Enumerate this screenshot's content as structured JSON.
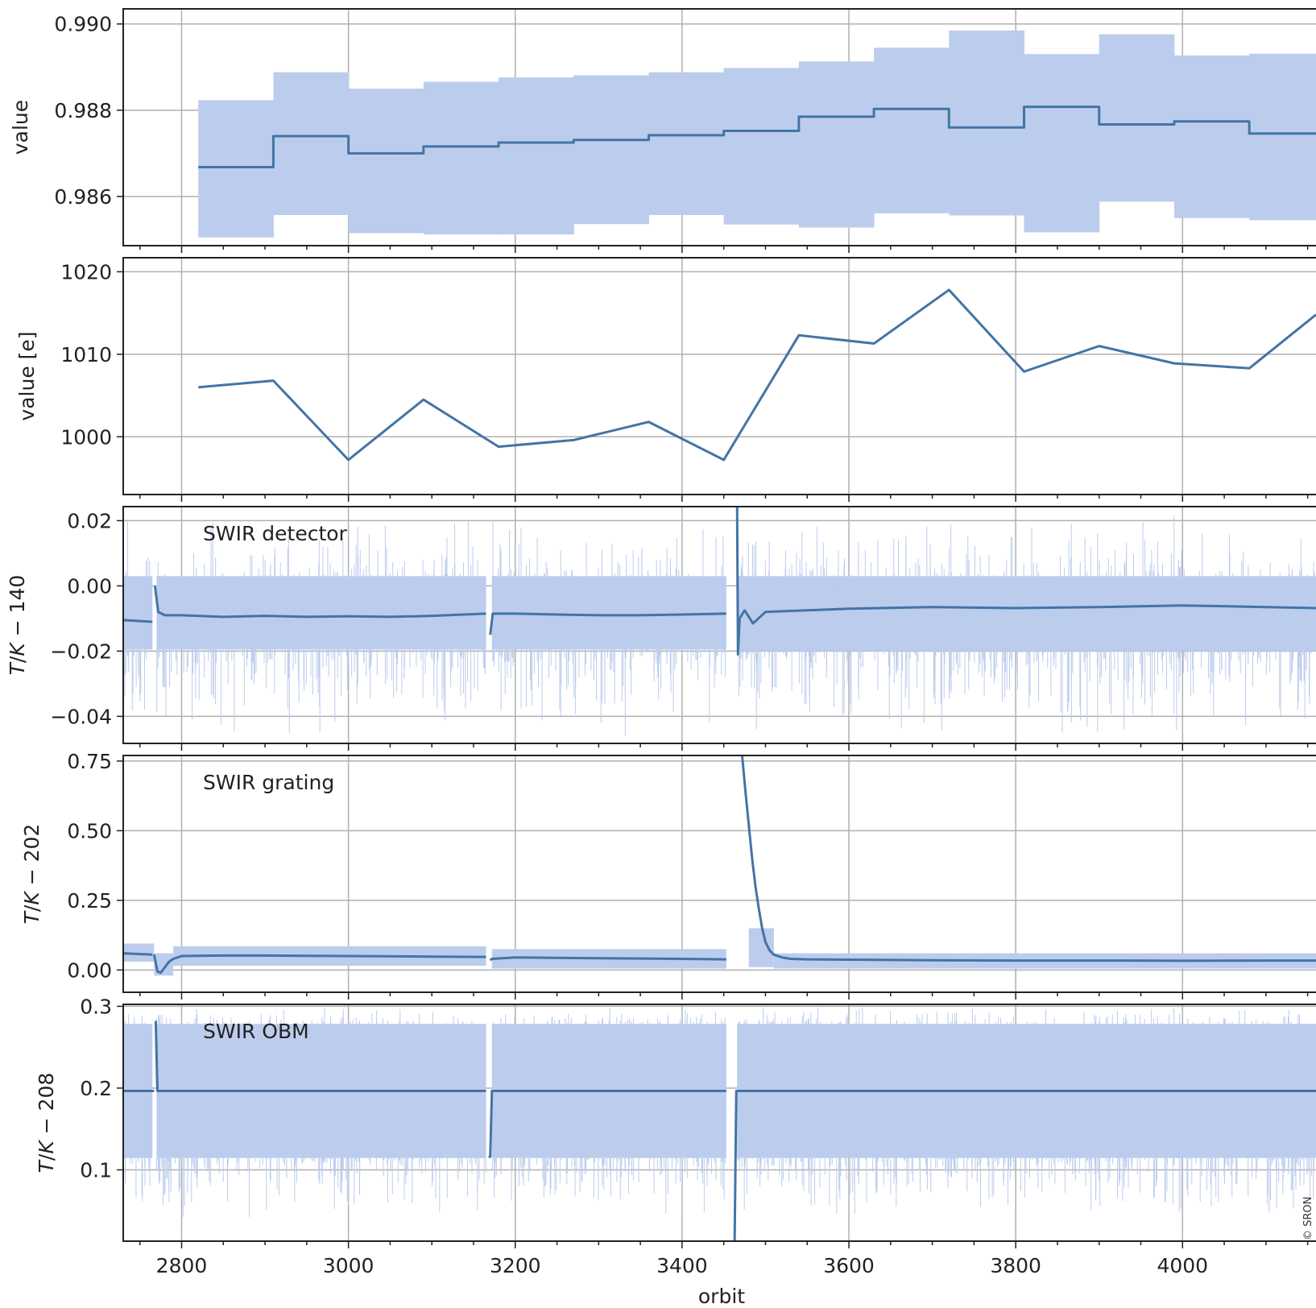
{
  "copyright": "© SRON",
  "colors": {
    "line": "#4374a6",
    "band": "#bccced",
    "grid": "#b0b0b0",
    "axis": "#222222"
  },
  "chart_data": [
    {
      "id": "p1",
      "type": "step",
      "ylabel": "value",
      "xlim": [
        2730,
        4160
      ],
      "ylim": [
        0.98486,
        0.99035
      ],
      "yticks": [
        0.986,
        0.988,
        0.99
      ],
      "ytick_labels": [
        "0.986",
        "0.988",
        "0.990"
      ],
      "x": [
        2820,
        2910,
        3000,
        3090,
        3180,
        3270,
        3360,
        3450,
        3540,
        3630,
        3720,
        3810,
        3900,
        3990,
        4080
      ],
      "y": [
        0.98668,
        0.9874,
        0.987,
        0.98716,
        0.98725,
        0.98731,
        0.98742,
        0.98752,
        0.98785,
        0.98803,
        0.9876,
        0.98808,
        0.98767,
        0.98774,
        0.98746
      ],
      "band_low": [
        0.98505,
        0.98557,
        0.98515,
        0.98512,
        0.98512,
        0.98536,
        0.98557,
        0.98535,
        0.98528,
        0.98561,
        0.98556,
        0.98517,
        0.98588,
        0.9855,
        0.98545
      ],
      "band_high": [
        0.98823,
        0.98888,
        0.9885,
        0.98866,
        0.98876,
        0.98881,
        0.98888,
        0.98898,
        0.98913,
        0.98945,
        0.98985,
        0.9893,
        0.98976,
        0.98927,
        0.98931
      ]
    },
    {
      "id": "p2",
      "type": "line",
      "ylabel": "value [e]",
      "xlim": [
        2730,
        4160
      ],
      "ylim": [
        993,
        1021.7
      ],
      "yticks": [
        1000,
        1010,
        1020
      ],
      "ytick_labels": [
        "1000",
        "1010",
        "1020"
      ],
      "x": [
        2820,
        2910,
        3000,
        3090,
        3180,
        3270,
        3360,
        3450,
        3540,
        3630,
        3720,
        3810,
        3900,
        3990,
        4080,
        4160
      ],
      "y": [
        1006.0,
        1006.8,
        997.2,
        1004.5,
        998.8,
        999.6,
        1001.8,
        997.2,
        1012.3,
        1011.3,
        1017.8,
        1007.9,
        1011.0,
        1008.9,
        1008.3,
        1014.8
      ]
    },
    {
      "id": "p3",
      "type": "line_band",
      "ylabel": "T/K − 140",
      "annotation": "SWIR detector",
      "xlim": [
        2730,
        4160
      ],
      "ylim": [
        -0.0483,
        0.0243
      ],
      "yticks": [
        -0.04,
        -0.02,
        0.0,
        0.02
      ],
      "ytick_labels": [
        "−0.04",
        "−0.02",
        "0.00",
        "0.02"
      ],
      "band_segments": [
        {
          "x": [
            2730,
            2765
          ],
          "low": -0.0195,
          "high": 0.003
        },
        {
          "x": [
            2770,
            3165
          ],
          "low": -0.0195,
          "high": 0.003
        },
        {
          "x": [
            3172,
            3453
          ],
          "low": -0.0195,
          "high": 0.003
        },
        {
          "x": [
            3466,
            3585
          ],
          "low": -0.02,
          "high": 0.003
        },
        {
          "x": [
            3585,
            4160
          ],
          "low": -0.02,
          "high": 0.003
        }
      ],
      "series_segments": [
        {
          "x": [
            2730,
            2765
          ],
          "y": [
            -0.0105,
            -0.011
          ]
        },
        {
          "x": [
            2768,
            2772,
            2780,
            2800,
            2850,
            2900,
            2950,
            3000,
            3050,
            3100,
            3165
          ],
          "y": [
            0.0,
            -0.008,
            -0.009,
            -0.009,
            -0.0095,
            -0.0092,
            -0.0095,
            -0.0093,
            -0.0095,
            -0.0092,
            -0.0085
          ]
        },
        {
          "x": [
            3170,
            3173,
            3200,
            3250,
            3300,
            3350,
            3400,
            3453
          ],
          "y": [
            -0.015,
            -0.0085,
            -0.0085,
            -0.0088,
            -0.009,
            -0.009,
            -0.0088,
            -0.0085
          ]
        },
        {
          "x": [
            3466,
            3467,
            3469,
            3475,
            3485,
            3500,
            3550,
            3600,
            3700,
            3800,
            3900,
            4000,
            4100,
            4160
          ],
          "y": [
            0.0243,
            -0.021,
            -0.01,
            -0.0075,
            -0.0115,
            -0.008,
            -0.0075,
            -0.007,
            -0.0065,
            -0.0068,
            -0.0065,
            -0.006,
            -0.0065,
            -0.0068
          ]
        }
      ],
      "spike_range": [
        -0.047,
        0.022
      ]
    },
    {
      "id": "p4",
      "type": "line_band",
      "ylabel": "T/K − 202",
      "annotation": "SWIR grating",
      "xlim": [
        2730,
        4160
      ],
      "ylim": [
        -0.08,
        0.77
      ],
      "yticks": [
        0.0,
        0.25,
        0.5,
        0.75
      ],
      "ytick_labels": [
        "0.00",
        "0.25",
        "0.50",
        "0.75"
      ],
      "band_segments": [
        {
          "x": [
            2730,
            2767
          ],
          "low": 0.03,
          "high": 0.095
        },
        {
          "x": [
            2767,
            2790
          ],
          "low": -0.02,
          "high": 0.06
        },
        {
          "x": [
            2790,
            3165
          ],
          "low": 0.015,
          "high": 0.085
        },
        {
          "x": [
            3172,
            3453
          ],
          "low": 0.005,
          "high": 0.075
        },
        {
          "x": [
            3480,
            3510
          ],
          "low": 0.01,
          "high": 0.15
        },
        {
          "x": [
            3510,
            4160
          ],
          "low": 0.005,
          "high": 0.06
        }
      ],
      "series_segments": [
        {
          "x": [
            2730,
            2765
          ],
          "y": [
            0.06,
            0.055
          ]
        },
        {
          "x": [
            2767,
            2771,
            2775,
            2780,
            2785,
            2790,
            2800,
            2850,
            2900,
            3000,
            3100,
            3165
          ],
          "y": [
            0.055,
            -0.005,
            -0.01,
            0.01,
            0.03,
            0.04,
            0.05,
            0.052,
            0.052,
            0.05,
            0.048,
            0.047
          ]
        },
        {
          "x": [
            3170,
            3172,
            3200,
            3300,
            3400,
            3453
          ],
          "y": [
            0.035,
            0.04,
            0.045,
            0.042,
            0.04,
            0.038
          ]
        },
        {
          "x": [
            3472,
            3476,
            3480,
            3484,
            3488,
            3492,
            3496,
            3500,
            3505,
            3510,
            3520,
            3530,
            3550,
            3600,
            3700,
            3800,
            3900,
            4000,
            4100,
            4160
          ],
          "y": [
            0.77,
            0.64,
            0.52,
            0.4,
            0.3,
            0.22,
            0.15,
            0.1,
            0.07,
            0.055,
            0.045,
            0.04,
            0.038,
            0.037,
            0.035,
            0.034,
            0.034,
            0.033,
            0.034,
            0.034
          ]
        }
      ]
    },
    {
      "id": "p5",
      "type": "line_band",
      "ylabel": "T/K − 208",
      "annotation": "SWIR OBM",
      "xlim": [
        2730,
        4160
      ],
      "ylim": [
        0.0128,
        0.3024
      ],
      "yticks": [
        0.1,
        0.2,
        0.3
      ],
      "ytick_labels": [
        "0.1",
        "0.2",
        "0.3"
      ],
      "band_segments": [
        {
          "x": [
            2730,
            2765
          ],
          "low": 0.1145,
          "high": 0.2785
        },
        {
          "x": [
            2770,
            3165
          ],
          "low": 0.1145,
          "high": 0.2785
        },
        {
          "x": [
            3172,
            3453
          ],
          "low": 0.1145,
          "high": 0.2785
        },
        {
          "x": [
            3466,
            4160
          ],
          "low": 0.1145,
          "high": 0.2785
        }
      ],
      "series_segments": [
        {
          "x": [
            2730,
            2767
          ],
          "y": [
            0.1965,
            0.1965
          ]
        },
        {
          "x": [
            2768,
            2769,
            2771,
            3165
          ],
          "y": [
            0.281,
            0.281,
            0.1965,
            0.1965
          ]
        },
        {
          "x": [
            3168,
            3170,
            3172,
            3453
          ],
          "y": [
            0.116,
            0.116,
            0.1965,
            0.1965
          ]
        },
        {
          "x": [
            3462,
            3463,
            3465,
            4160
          ],
          "y": [
            0.0128,
            0.0128,
            0.1965,
            0.1965
          ]
        }
      ],
      "spike_range": [
        0.038,
        0.3024
      ]
    }
  ],
  "x_axis": {
    "label": "orbit",
    "ticks": [
      2800,
      3000,
      3200,
      3400,
      3600,
      3800,
      4000
    ],
    "tick_labels": [
      "2800",
      "3000",
      "3200",
      "3400",
      "3600",
      "3800",
      "4000"
    ],
    "minor_step": 50
  }
}
